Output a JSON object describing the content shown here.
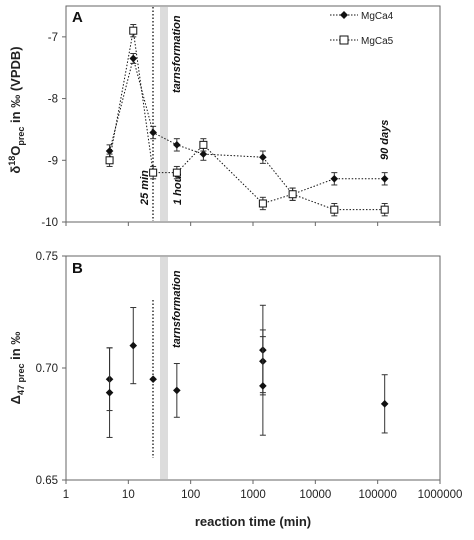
{
  "chart_data": [
    {
      "type": "scatter",
      "panel_label": "A",
      "ylabel": "δ18Oprec in ‰ (VPDB)",
      "ylabel_parts": {
        "pre": "δ",
        "sup": "18",
        "mid": "O",
        "sub": "prec",
        "post": " in ‰ (VPDB)"
      },
      "xscale": "log",
      "xlim": [
        1,
        1000000
      ],
      "ylim": [
        -10,
        -6.5
      ],
      "yticks": [
        "-7",
        "-8",
        "-9",
        "-10"
      ],
      "ytick_values": [
        -7,
        -8,
        -9,
        -10
      ],
      "legend": "top-right",
      "annotations": [
        "25 min",
        "tarnsformation",
        "1 hour",
        "90 days"
      ],
      "series": [
        {
          "name": "MgCa4",
          "marker": "diamond-filled",
          "line": "dotted",
          "color": "#111111",
          "points": [
            {
              "x": 5,
              "y": -8.85,
              "err": 0.1
            },
            {
              "x": 12,
              "y": -7.35,
              "err": 0.08
            },
            {
              "x": 25,
              "y": -8.55,
              "err": 0.1
            },
            {
              "x": 60,
              "y": -8.75,
              "err": 0.1
            },
            {
              "x": 160,
              "y": -8.9,
              "err": 0.1
            },
            {
              "x": 1440,
              "y": -8.95,
              "err": 0.1
            },
            {
              "x": 4320,
              "y": -9.55,
              "err": 0.1
            },
            {
              "x": 20160,
              "y": -9.3,
              "err": 0.1
            },
            {
              "x": 129600,
              "y": -9.3,
              "err": 0.1
            }
          ]
        },
        {
          "name": "MgCa5",
          "marker": "square-open",
          "line": "dotted",
          "color": "#111111",
          "points": [
            {
              "x": 5,
              "y": -9.0,
              "err": 0.1
            },
            {
              "x": 12,
              "y": -6.9,
              "err": 0.1
            },
            {
              "x": 25,
              "y": -9.2,
              "err": 0.1
            },
            {
              "x": 60,
              "y": -9.2,
              "err": 0.1
            },
            {
              "x": 160,
              "y": -8.75,
              "err": 0.1
            },
            {
              "x": 1440,
              "y": -9.7,
              "err": 0.1
            },
            {
              "x": 4320,
              "y": -9.55,
              "err": 0.1
            },
            {
              "x": 20160,
              "y": -9.8,
              "err": 0.1
            },
            {
              "x": 129600,
              "y": -9.8,
              "err": 0.1
            }
          ]
        }
      ]
    },
    {
      "type": "scatter",
      "panel_label": "B",
      "ylabel": "Δ47 prec in ‰",
      "ylabel_parts": {
        "pre": "Δ",
        "sub": "47 prec",
        "post": " in ‰"
      },
      "xlabel": "reaction time (min)",
      "xscale": "log",
      "xlim": [
        1,
        1000000
      ],
      "ylim": [
        0.65,
        0.75
      ],
      "yticks": [
        "0.75",
        "0.70",
        "0.65"
      ],
      "ytick_values": [
        0.75,
        0.7,
        0.65
      ],
      "xticks": [
        "1",
        "10",
        "100",
        "1000",
        "10000",
        "100000",
        "1000000"
      ],
      "xtick_values": [
        1,
        10,
        100,
        1000,
        10000,
        100000,
        1000000
      ],
      "annotations": [
        "tarnsformation"
      ],
      "series": [
        {
          "marker": "diamond-filled",
          "color": "#111111",
          "points": [
            {
              "x": 5,
              "y": 0.695,
              "err": 0.014
            },
            {
              "x": 5,
              "y": 0.689,
              "err": 0.02
            },
            {
              "x": 12,
              "y": 0.71,
              "err": 0.017
            },
            {
              "x": 25,
              "y": 0.695,
              "err": 0.0
            },
            {
              "x": 60,
              "y": 0.69,
              "err": 0.012
            },
            {
              "x": 1440,
              "y": 0.708,
              "err": 0.02
            },
            {
              "x": 1440,
              "y": 0.703,
              "err": 0.014
            },
            {
              "x": 1440,
              "y": 0.692,
              "err": 0.022
            },
            {
              "x": 129600,
              "y": 0.684,
              "err": 0.013
            }
          ]
        }
      ]
    }
  ]
}
